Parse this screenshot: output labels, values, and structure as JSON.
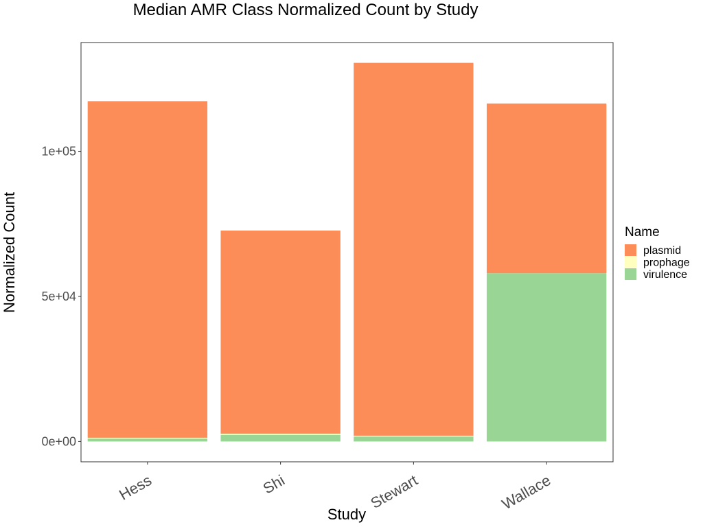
{
  "chart_data": {
    "type": "bar",
    "stacked": true,
    "title": "Median AMR Class Normalized Count by Study",
    "xlabel": "Study",
    "ylabel": "Normalized Count",
    "categories": [
      "Hess",
      "Shi",
      "Stewart",
      "Wallace"
    ],
    "series": [
      {
        "name": "virulence",
        "color": "#99d594",
        "values": [
          1000,
          2300,
          1700,
          58000
        ]
      },
      {
        "name": "prophage",
        "color": "#ffffbf",
        "values": [
          300,
          400,
          300,
          0
        ]
      },
      {
        "name": "plasmid",
        "color": "#fc8d59",
        "values": [
          116000,
          70000,
          128500,
          58500
        ]
      }
    ],
    "ylim": [
      -7000,
      137500
    ],
    "y_ticks": [
      0,
      50000,
      100000
    ],
    "y_tick_labels": [
      "0e+00",
      "5e+04",
      "1e+05"
    ],
    "legend": {
      "title": "Name",
      "position": "right",
      "items": [
        "plasmid",
        "prophage",
        "virulence"
      ]
    },
    "grid": false
  }
}
